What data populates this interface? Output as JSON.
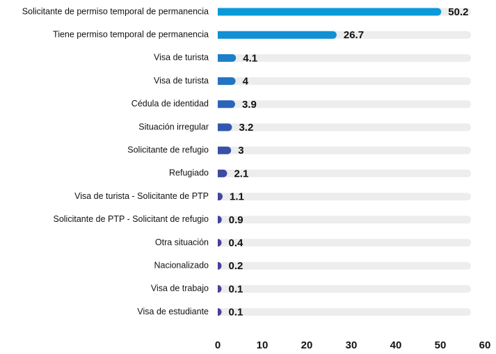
{
  "chart_data": {
    "type": "hbar",
    "categories": [
      "Solicitante de permiso temporal de permanencia",
      "Tiene permiso temporal de permanencia",
      "Visa de turista",
      "Visa de turista",
      "Cédula de identidad",
      "Situación irregular",
      "Solicitante de refugio",
      "Refugiado",
      "Visa de turista - Solicitante de PTP",
      "Solicitante de PTP - Solicitant de refugio",
      "Otra situación",
      "Nacionalizado",
      "Visa de trabajo",
      "Visa de estudiante"
    ],
    "values": [
      50.2,
      26.7,
      4.1,
      4,
      3.9,
      3.2,
      3,
      2.1,
      1.1,
      0.9,
      0.4,
      0.2,
      0.1,
      0.1
    ],
    "colors": [
      "#0a9ad9",
      "#1190d4",
      "#1d7fc8",
      "#2374c2",
      "#2b64b8",
      "#3158ae",
      "#3852a8",
      "#3d4aa3",
      "#4146a0",
      "#44429e",
      "#46409d",
      "#46409d",
      "#47409c",
      "#47409c"
    ],
    "xlim": [
      0,
      60
    ],
    "xticks": [
      0,
      10,
      20,
      30,
      40,
      50,
      60
    ]
  }
}
